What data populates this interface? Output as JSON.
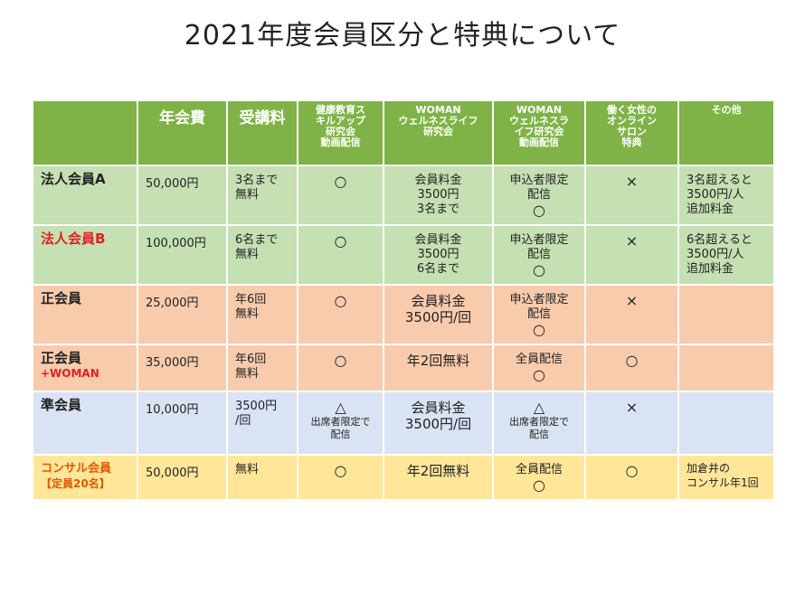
{
  "title": "2021年度会員区分と特典について",
  "headers": [
    "",
    "年会費",
    "受講料",
    "健康教育スキルアップ研究会動画配信",
    "WOMANウェルネスライフ研究会",
    "WOMANウェルネスライフ研究会動画配信",
    "働く女性のオンラインサロン特典",
    "その他"
  ],
  "header_lines": {
    "c3": [
      "健康教育ス",
      "キルアップ",
      "研究会",
      "動画配信"
    ],
    "c4": [
      "WOMAN",
      "ウェルネスライフ",
      "研究会"
    ],
    "c5": [
      "WOMAN",
      "ウェルネスラ",
      "イフ研究会",
      "動画配信"
    ],
    "c6": [
      "働く女性の",
      "オンライン",
      "サロン",
      "特典"
    ]
  },
  "rows": [
    {
      "name": "法人会員A",
      "fee": "50,000円",
      "tuition": [
        "3名まで",
        "無料"
      ],
      "skill": "○",
      "woman": [
        "会員料金",
        "3500円",
        "3名まで"
      ],
      "woman_video": [
        "申込者限定",
        "配信",
        "○"
      ],
      "salon": "×",
      "other": [
        "3名超えると",
        "3500円/人",
        "追加料金"
      ]
    },
    {
      "name": "法人会員B",
      "fee": "100,000円",
      "tuition": [
        "6名まで",
        "無料"
      ],
      "skill": "○",
      "woman": [
        "会員料金",
        "3500円",
        "6名まで"
      ],
      "woman_video": [
        "申込者限定",
        "配信",
        "○"
      ],
      "salon": "×",
      "other": [
        "6名超えると",
        "3500円/人",
        "追加料金"
      ]
    },
    {
      "name": "正会員",
      "fee": "25,000円",
      "tuition": [
        "年6回",
        "無料"
      ],
      "skill": "○",
      "woman": [
        "会員料金",
        "3500円/回"
      ],
      "woman_video": [
        "申込者限定",
        "配信",
        "○"
      ],
      "salon": "×",
      "other": []
    },
    {
      "name": "正会員",
      "name_sub": "+WOMAN",
      "fee": "35,000円",
      "tuition": [
        "年6回",
        "無料"
      ],
      "skill": "○",
      "woman": [
        "年2回無料"
      ],
      "woman_video": [
        "全員配信",
        "○"
      ],
      "salon": "○",
      "other": []
    },
    {
      "name": "準会員",
      "fee": "10,000円",
      "tuition": [
        "3500円",
        "/回"
      ],
      "skill": "△",
      "skill_note": [
        "出席者限定で",
        "配信"
      ],
      "woman": [
        "会員料金",
        "3500円/回"
      ],
      "woman_video": [
        "△",
        "出席者限定で",
        "配信"
      ],
      "salon": "×",
      "other": []
    },
    {
      "name": "コンサル会員",
      "name_sub": "【定員20名】",
      "fee": "50,000円",
      "tuition": [
        "無料"
      ],
      "skill": "○",
      "woman": [
        "年2回無料"
      ],
      "woman_video": [
        "全員配信",
        "○"
      ],
      "salon": "○",
      "other": [
        "加倉井の",
        "コンサル年1回"
      ]
    }
  ],
  "colors": {
    "header": "#7fb347",
    "corporate": "#c5e0b3",
    "regular": "#f8cbad",
    "associate": "#dae3f3",
    "consult": "#ffe699",
    "red_text": "#e02020",
    "orange_text": "#e05a00"
  }
}
